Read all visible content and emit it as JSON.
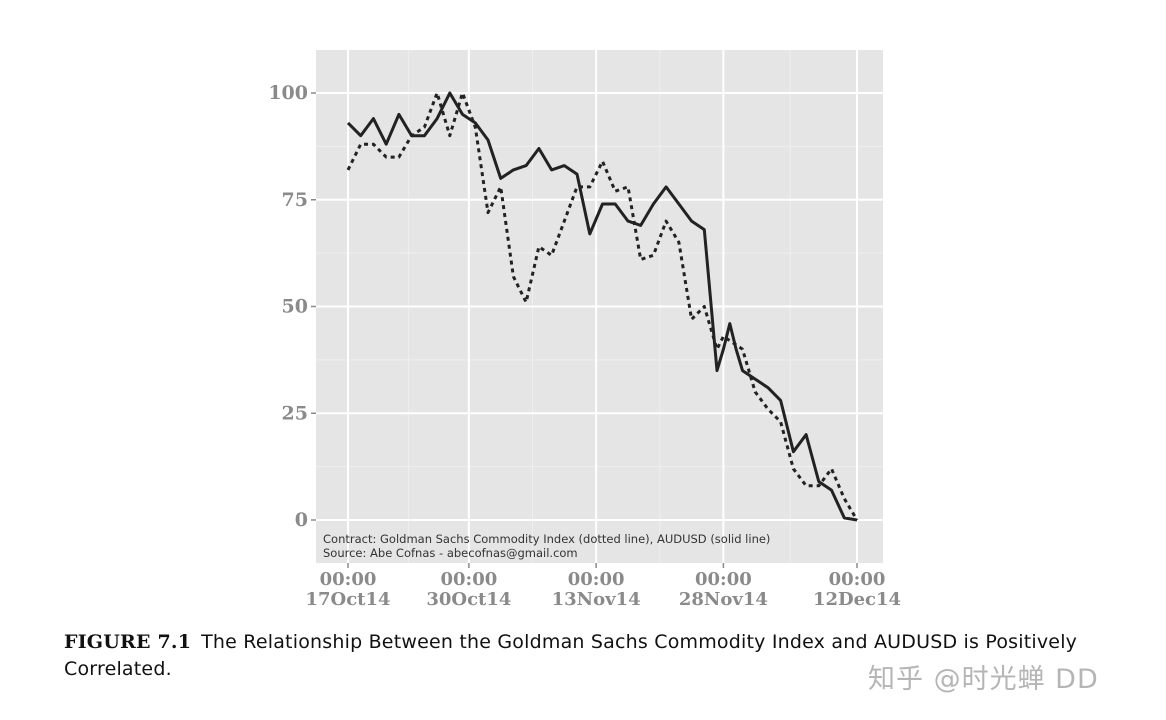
{
  "figure": {
    "label": "FIGURE 7.1",
    "caption": "The Relationship Between the Goldman Sachs Commodity Index and AUDUSD is Positively Correlated."
  },
  "watermark": "知乎 @时光蝉 DD",
  "chart_data": {
    "type": "line",
    "title": "",
    "xlabel": "",
    "ylabel": "",
    "ylim": [
      -10,
      110
    ],
    "yticks": [
      0,
      25,
      50,
      75,
      100
    ],
    "xlim": [
      -1,
      40
    ],
    "xticks": [
      {
        "x": 0,
        "time": "00:00",
        "date": "17Oct14"
      },
      {
        "x": 9.5,
        "time": "00:00",
        "date": "30Oct14"
      },
      {
        "x": 19.5,
        "time": "00:00",
        "date": "13Nov14"
      },
      {
        "x": 29.5,
        "time": "00:00",
        "date": "28Nov14"
      },
      {
        "x": 40,
        "time": "00:00",
        "date": "12Dec14"
      }
    ],
    "grid": true,
    "annotations": [
      "Contract: Goldman Sachs Commodity Index (dotted line), AUDUSD (solid line)",
      "Source: Abe Cofnas - abecofnas@gmail.com"
    ],
    "series": [
      {
        "name": "AUDUSD (solid line)",
        "style": "solid",
        "x": [
          0,
          1,
          2,
          3,
          4,
          5,
          6,
          7,
          8,
          9,
          10,
          11,
          12,
          13,
          14,
          15,
          16,
          17,
          18,
          19,
          20,
          21,
          22,
          23,
          24,
          25,
          26,
          27,
          28,
          29,
          29.5,
          30,
          30.5,
          31,
          32,
          33,
          34,
          35,
          36,
          37,
          38,
          39,
          40
        ],
        "values": [
          93,
          90,
          94,
          88,
          95,
          90,
          90,
          94,
          100,
          95,
          93,
          89,
          80,
          82,
          83,
          87,
          82,
          83,
          81,
          67,
          74,
          74,
          70,
          69,
          74,
          78,
          74,
          70,
          68,
          35,
          40,
          46,
          40,
          35,
          33,
          31,
          28,
          16,
          20,
          9,
          7,
          0.5,
          0
        ]
      },
      {
        "name": "Goldman Sachs Commodity Index (dotted line)",
        "style": "dotted",
        "x": [
          0,
          1,
          2,
          3,
          4,
          5,
          6,
          7,
          8,
          9,
          10,
          11,
          12,
          13,
          14,
          15,
          16,
          17,
          18,
          19,
          20,
          21,
          22,
          23,
          24,
          25,
          26,
          27,
          28,
          29,
          29.5,
          30,
          30.5,
          31,
          32,
          33,
          34,
          35,
          36,
          37,
          38,
          39,
          40
        ],
        "values": [
          82,
          88,
          88,
          85,
          85,
          90,
          92,
          100,
          90,
          100,
          92,
          72,
          78,
          57,
          51,
          64,
          62,
          70,
          78,
          78,
          84,
          77,
          78,
          61,
          62,
          70,
          65,
          47,
          50,
          40,
          43,
          42,
          41,
          40,
          30,
          26,
          23,
          12,
          8,
          8,
          12,
          5,
          0
        ]
      }
    ]
  }
}
